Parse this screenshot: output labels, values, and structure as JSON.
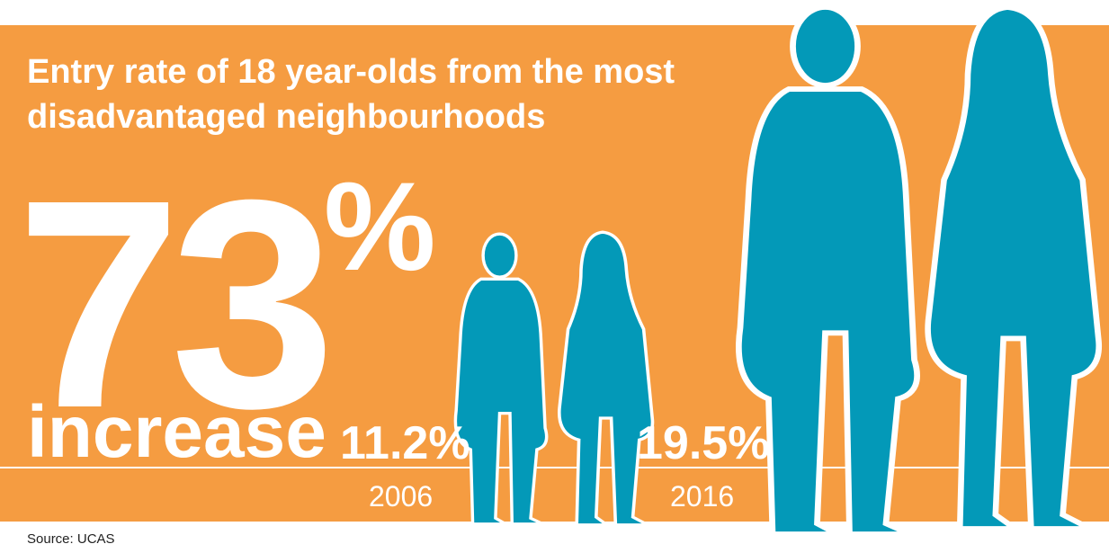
{
  "title": "Entry rate of 18 year-olds from the most disadvantaged neighbourhoods",
  "headline": {
    "number": "73",
    "unit": "%",
    "label": "increase"
  },
  "years": [
    {
      "rate": "11.2%",
      "year": "2006"
    },
    {
      "rate": "19.5%",
      "year": "2016"
    }
  ],
  "source": "Source: UCAS"
}
